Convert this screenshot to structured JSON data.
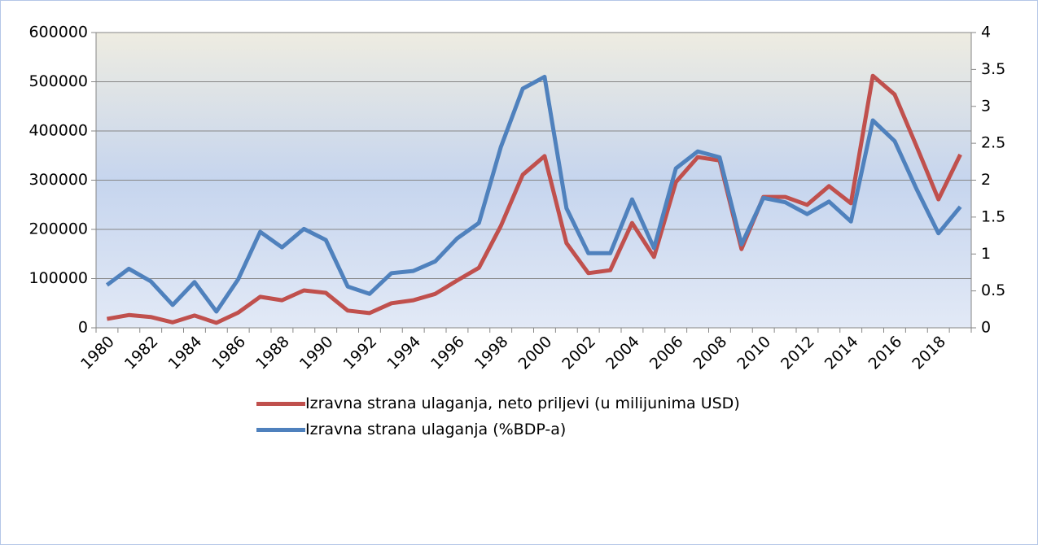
{
  "chart_data": {
    "type": "line",
    "categories": [
      "1980",
      null,
      "1982",
      null,
      "1984",
      null,
      "1986",
      null,
      "1988",
      null,
      "1990",
      null,
      "1992",
      null,
      "1994",
      null,
      "1996",
      null,
      "1998",
      null,
      "2000",
      null,
      "2002",
      null,
      "2004",
      null,
      "2006",
      null,
      "2008",
      null,
      "2010",
      null,
      "2012",
      null,
      "2014",
      null,
      "2016",
      null,
      "2018",
      null
    ],
    "series": [
      {
        "name": "Izravna strana ulaganja, neto priljevi (u milijunima USD)",
        "color": "#c0504d",
        "values": [
          18000,
          26000,
          22000,
          11000,
          25000,
          10000,
          31000,
          63000,
          56000,
          76000,
          71000,
          35000,
          30000,
          50000,
          56000,
          69000,
          96000,
          122000,
          207000,
          311000,
          349000,
          172000,
          111000,
          117000,
          213000,
          144000,
          296000,
          347000,
          340000,
          160000,
          266000,
          266000,
          250000,
          288000,
          253000,
          512000,
          474000,
          369000,
          261000,
          352000
        ]
      },
      {
        "name": "Izravna strana ulaganja (%BDP-a)",
        "color": "#4f81bd",
        "axis": "y2",
        "values": [
          0.58,
          0.8,
          0.63,
          0.31,
          0.62,
          0.22,
          0.66,
          1.3,
          1.09,
          1.34,
          1.19,
          0.56,
          0.46,
          0.74,
          0.77,
          0.9,
          1.21,
          1.42,
          2.45,
          3.24,
          3.4,
          1.62,
          1.01,
          1.01,
          1.74,
          1.08,
          2.16,
          2.39,
          2.31,
          1.13,
          1.76,
          1.7,
          1.54,
          1.71,
          1.44,
          2.81,
          2.53,
          1.88,
          1.28,
          1.64
        ]
      }
    ],
    "ylim": [
      0,
      600000
    ],
    "yticks": [
      0,
      100000,
      200000,
      300000,
      400000,
      500000,
      600000
    ],
    "y2lim": [
      0,
      4
    ],
    "y2ticks": [
      0,
      0.5,
      1,
      1.5,
      2,
      2.5,
      3,
      3.5,
      4
    ],
    "grid": true
  }
}
